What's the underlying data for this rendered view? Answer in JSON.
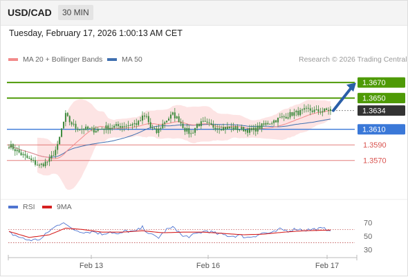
{
  "header": {
    "symbol": "USD/CAD",
    "timeframe": "30 MIN",
    "datetime": "Tuesday, February 17, 2026 1:00:13 AM CET"
  },
  "legend": {
    "ma20_bb": "MA 20 + Bollinger Bands",
    "ma50": "MA 50",
    "credit": "Research © 2026 Trading Central",
    "rsi": "RSI",
    "rsi_ma": "9MA"
  },
  "colors": {
    "resistance": "#4e9a06",
    "support": "#d9534f",
    "pivot": "#3a78d8",
    "current": "#333333",
    "candle": "#3d8b3d",
    "ma20": "#f28a8a",
    "ma50": "#3f6fb0",
    "bollinger_fill": "#fde3e3",
    "arrow": "#2a5fa8",
    "rsi_line": "#4f74d0",
    "rsi_ma_line": "#d62020"
  },
  "chart_data": [
    {
      "type": "candlestick",
      "title": "USD/CAD 30 MIN",
      "x_tick_labels": [
        "Feb 13",
        "Feb 16",
        "Feb 17"
      ],
      "levels": [
        {
          "label": "1.3670",
          "value": 1.367,
          "kind": "resistance",
          "style": "filled"
        },
        {
          "label": "1.3650",
          "value": 1.365,
          "kind": "resistance",
          "style": "filled"
        },
        {
          "label": "1.3634",
          "value": 1.3634,
          "kind": "current",
          "style": "filled"
        },
        {
          "label": "1.3610",
          "value": 1.361,
          "kind": "pivot",
          "style": "filled"
        },
        {
          "label": "1.3590",
          "value": 1.359,
          "kind": "support",
          "style": "text"
        },
        {
          "label": "1.3570",
          "value": 1.357,
          "kind": "support",
          "style": "text"
        }
      ],
      "ylim": [
        1.3536,
        1.3687
      ],
      "bar_count": 160,
      "price_keyframes": [
        [
          0,
          1.359
        ],
        [
          6,
          1.3578
        ],
        [
          12,
          1.3568
        ],
        [
          15,
          1.3563
        ],
        [
          20,
          1.357
        ],
        [
          24,
          1.3588
        ],
        [
          26,
          1.361
        ],
        [
          28,
          1.3628
        ],
        [
          30,
          1.362
        ],
        [
          33,
          1.3612
        ],
        [
          36,
          1.3611
        ],
        [
          42,
          1.3609
        ],
        [
          48,
          1.3612
        ],
        [
          54,
          1.3614
        ],
        [
          60,
          1.3616
        ],
        [
          64,
          1.3618
        ],
        [
          66,
          1.3625
        ],
        [
          68,
          1.3626
        ],
        [
          70,
          1.3612
        ],
        [
          73,
          1.3606
        ],
        [
          77,
          1.362
        ],
        [
          81,
          1.3629
        ],
        [
          84,
          1.3622
        ],
        [
          87,
          1.361
        ],
        [
          90,
          1.3604
        ],
        [
          93,
          1.3616
        ],
        [
          96,
          1.3618
        ],
        [
          100,
          1.3614
        ],
        [
          106,
          1.3612
        ],
        [
          112,
          1.3611
        ],
        [
          116,
          1.361
        ],
        [
          120,
          1.3608
        ],
        [
          124,
          1.3613
        ],
        [
          128,
          1.3618
        ],
        [
          132,
          1.3622
        ],
        [
          136,
          1.3626
        ],
        [
          140,
          1.363
        ],
        [
          144,
          1.3632
        ],
        [
          148,
          1.3635
        ],
        [
          152,
          1.3633
        ],
        [
          156,
          1.3634
        ],
        [
          159,
          1.3635
        ]
      ],
      "forecast_arrow": {
        "from": 1.3634,
        "to": 1.3668
      }
    },
    {
      "type": "line",
      "title": "RSI",
      "y_ticks": [
        30,
        50,
        70
      ],
      "ylim": [
        22,
        80
      ],
      "reference_lines": [
        40,
        60
      ],
      "series": [
        {
          "name": "RSI",
          "keyframes": [
            [
              0,
              55
            ],
            [
              4,
              50
            ],
            [
              8,
              45
            ],
            [
              12,
              44
            ],
            [
              16,
              46
            ],
            [
              20,
              58
            ],
            [
              24,
              66
            ],
            [
              27,
              72
            ],
            [
              30,
              62
            ],
            [
              34,
              58
            ],
            [
              38,
              56
            ],
            [
              42,
              57
            ],
            [
              46,
              53
            ],
            [
              50,
              57
            ],
            [
              54,
              52
            ],
            [
              58,
              58
            ],
            [
              62,
              56
            ],
            [
              66,
              63
            ],
            [
              70,
              52
            ],
            [
              74,
              48
            ],
            [
              78,
              60
            ],
            [
              82,
              63
            ],
            [
              86,
              49
            ],
            [
              90,
              50
            ],
            [
              94,
              55
            ],
            [
              98,
              58
            ],
            [
              102,
              54
            ],
            [
              106,
              52
            ],
            [
              110,
              50
            ],
            [
              114,
              51
            ],
            [
              118,
              48
            ],
            [
              122,
              51
            ],
            [
              126,
              55
            ],
            [
              130,
              54
            ],
            [
              134,
              60
            ],
            [
              138,
              58
            ],
            [
              142,
              61
            ],
            [
              146,
              59
            ],
            [
              150,
              60
            ],
            [
              154,
              61
            ],
            [
              158,
              60
            ]
          ]
        },
        {
          "name": "9MA",
          "keyframes": [
            [
              0,
              57
            ],
            [
              10,
              48
            ],
            [
              20,
              52
            ],
            [
              28,
              62
            ],
            [
              36,
              60
            ],
            [
              46,
              56
            ],
            [
              56,
              56
            ],
            [
              66,
              58
            ],
            [
              76,
              55
            ],
            [
              86,
              56
            ],
            [
              96,
              56
            ],
            [
              106,
              54
            ],
            [
              116,
              52
            ],
            [
              126,
              53
            ],
            [
              136,
              56
            ],
            [
              146,
              58
            ],
            [
              158,
              59
            ]
          ]
        }
      ]
    }
  ]
}
